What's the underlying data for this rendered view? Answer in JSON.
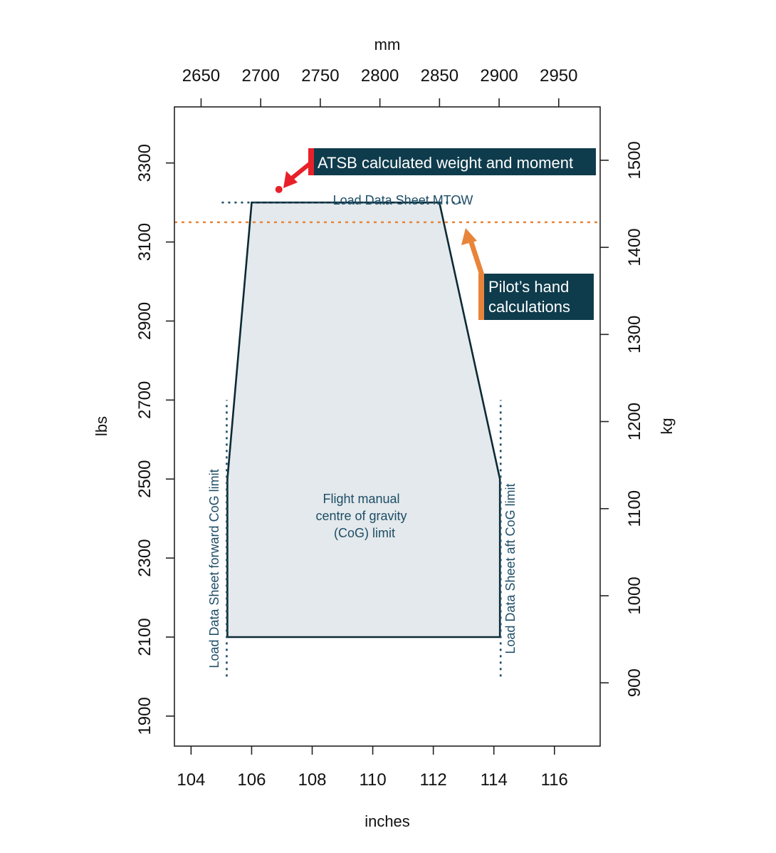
{
  "chart_data": {
    "type": "area",
    "title": "",
    "xlabel": "inches",
    "ylabel": "lbs",
    "x2label": "mm",
    "y2label": "kg",
    "xlim": [
      103.45,
      117.51
    ],
    "ylim": [
      1824,
      3442
    ],
    "x_ticks": [
      104,
      106,
      108,
      110,
      112,
      114,
      116
    ],
    "y_ticks": [
      1900,
      2100,
      2300,
      2500,
      2700,
      2900,
      3100,
      3300
    ],
    "x2_ticks": [
      2650,
      2700,
      2750,
      2800,
      2850,
      2900,
      2950
    ],
    "y2_ticks": [
      900,
      1000,
      1100,
      1200,
      1300,
      1400,
      1500
    ],
    "envelope": {
      "label_lines": [
        "Flight manual",
        "centre of gravity",
        "(CoG) limit"
      ],
      "points": [
        {
          "x": 105.2,
          "y": 2100
        },
        {
          "x": 105.2,
          "y": 2500
        },
        {
          "x": 106.0,
          "y": 3200
        },
        {
          "x": 112.2,
          "y": 3200
        },
        {
          "x": 114.2,
          "y": 2500
        },
        {
          "x": 114.2,
          "y": 2100
        }
      ]
    },
    "limits": {
      "mtow": {
        "label": "Load Data Sheet MTOW",
        "y": 3200,
        "x_from": 105.2,
        "x_to": 113.0
      },
      "forward": {
        "label": "Load Data Sheet forward CoG limit",
        "x": 105.2,
        "y_from": 2000,
        "y_to": 2700
      },
      "aft": {
        "label": "Load Data Sheet aft CoG limit",
        "x": 114.2,
        "y_from": 2000,
        "y_to": 2700
      },
      "pilot": {
        "label_lines": [
          "Pilot’s hand",
          "calculations"
        ],
        "y": 3150
      }
    },
    "atsb_point": {
      "label": "ATSB calculated weight and moment",
      "x": 106.9,
      "y": 3233
    }
  },
  "colors": {
    "envelope_fill": "#e3e9ec",
    "envelope_stroke": "#0d2a35",
    "teal": "#1e4d66",
    "callout_bg": "#0f3c4c",
    "red": "#e8202a",
    "orange": "#e8843a"
  }
}
